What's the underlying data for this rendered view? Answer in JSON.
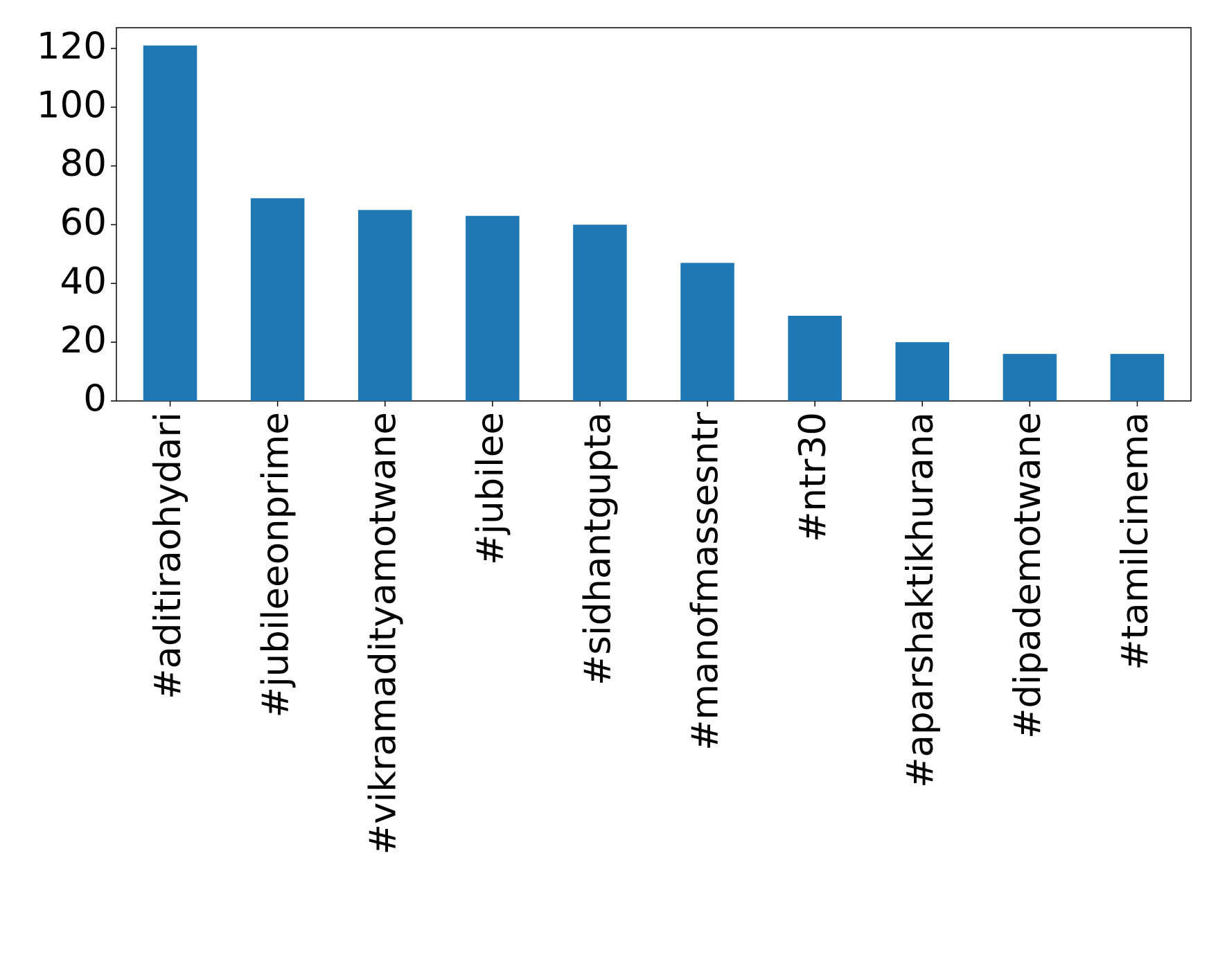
{
  "chart_data": {
    "type": "bar",
    "categories": [
      "#aditiraohydari",
      "#jubileeonprime",
      "#vikramadityamotwane",
      "#jubilee",
      "#sidhantgupta",
      "#manofmassesntr",
      "#ntr30",
      "#aparshaktikhurana",
      "#dipademotwane",
      "#tamilcinema"
    ],
    "values": [
      121,
      69,
      65,
      63,
      60,
      47,
      29,
      20,
      16,
      16
    ],
    "color": "#1f77b4",
    "ylim": [
      0,
      127.05
    ],
    "yticks": [
      0,
      20,
      40,
      60,
      80,
      100,
      120
    ],
    "grid": false
  }
}
